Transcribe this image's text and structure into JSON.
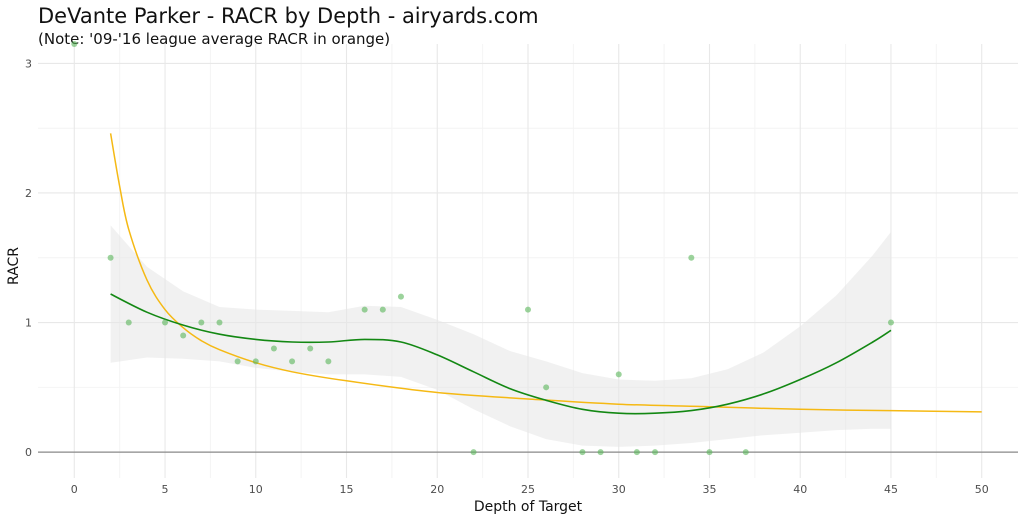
{
  "chart_data": {
    "type": "scatter",
    "title": "DeVante Parker - RACR by Depth - airyards.com",
    "subtitle": "(Note: '09-'16 league average RACR in orange)",
    "xlabel": "Depth of Target",
    "ylabel": "RACR",
    "xlim": [
      -2,
      52
    ],
    "ylim": [
      -0.2,
      3.15
    ],
    "x_ticks": [
      0,
      5,
      10,
      15,
      20,
      25,
      30,
      35,
      40,
      45,
      50
    ],
    "y_ticks": [
      0,
      1,
      2,
      3
    ],
    "grid": true,
    "points": {
      "x": [
        0,
        2,
        3,
        5,
        6,
        7,
        8,
        9,
        10,
        11,
        12,
        13,
        14,
        16,
        17,
        18,
        22,
        25,
        26,
        28,
        29,
        30,
        31,
        32,
        34,
        35,
        37,
        45
      ],
      "y": [
        3.15,
        1.5,
        1.0,
        1.0,
        0.9,
        1.0,
        1.0,
        0.7,
        0.7,
        0.8,
        0.7,
        0.8,
        0.7,
        1.1,
        1.1,
        1.2,
        0.0,
        1.1,
        0.5,
        0.0,
        0.0,
        0.6,
        0.0,
        0.0,
        1.5,
        0.0,
        0.0,
        1.0
      ]
    },
    "smooth_fit": {
      "x": [
        2,
        4,
        6,
        8,
        10,
        12,
        14,
        16,
        18,
        20,
        22,
        24,
        26,
        28,
        30,
        32,
        34,
        36,
        38,
        40,
        42,
        44,
        45
      ],
      "y": [
        1.22,
        1.08,
        0.98,
        0.91,
        0.87,
        0.85,
        0.85,
        0.87,
        0.85,
        0.75,
        0.62,
        0.49,
        0.4,
        0.33,
        0.3,
        0.3,
        0.32,
        0.37,
        0.45,
        0.56,
        0.69,
        0.85,
        0.94
      ],
      "ci_lower": [
        0.69,
        0.73,
        0.72,
        0.7,
        0.65,
        0.62,
        0.6,
        0.6,
        0.58,
        0.48,
        0.33,
        0.2,
        0.1,
        0.05,
        0.04,
        0.05,
        0.07,
        0.1,
        0.13,
        0.15,
        0.17,
        0.18,
        0.18
      ],
      "ci_upper": [
        1.75,
        1.43,
        1.24,
        1.12,
        1.1,
        1.09,
        1.08,
        1.13,
        1.12,
        1.02,
        0.91,
        0.78,
        0.7,
        0.61,
        0.56,
        0.55,
        0.57,
        0.64,
        0.77,
        0.97,
        1.21,
        1.52,
        1.7
      ],
      "color": "#138813",
      "band_color": "#e6e6e6"
    },
    "league_average": {
      "x": [
        2,
        2.5,
        3,
        4,
        5,
        6,
        7,
        8,
        10,
        12,
        15,
        20,
        25,
        30,
        35,
        40,
        45,
        50
      ],
      "y": [
        2.46,
        2.05,
        1.72,
        1.33,
        1.1,
        0.96,
        0.86,
        0.79,
        0.69,
        0.62,
        0.55,
        0.46,
        0.41,
        0.37,
        0.35,
        0.33,
        0.32,
        0.31
      ],
      "color": "#f5b914"
    },
    "point_color": "#5ab55a"
  }
}
